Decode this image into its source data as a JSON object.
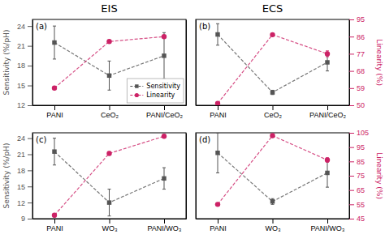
{
  "chart_data": [
    {
      "type": "line",
      "title": "EIS",
      "annotation": "(a)",
      "categories": [
        "PANI",
        "CeO₂",
        "PANI/CeO₂"
      ],
      "y_label": "Sensitivity (%/pH)",
      "ylim": [
        12,
        25
      ],
      "yticks": [
        12,
        15,
        18,
        21,
        24
      ],
      "y2lim": [
        65,
        100
      ],
      "legend": "lower right",
      "series": [
        {
          "name": "Sensitivity",
          "color": "#555555",
          "marker": "square",
          "line_style": "dashed",
          "values": [
            21.5,
            16.5,
            19.5
          ],
          "errors": [
            2.5,
            2.2,
            3.5
          ]
        },
        {
          "name": "Linearity",
          "axis": "y2",
          "color": "#cc2266",
          "marker": "circle",
          "line_style": "dashed",
          "values": [
            72,
            91,
            93
          ],
          "errors": [
            0.5,
            0.5,
            0.5
          ]
        }
      ]
    },
    {
      "type": "line",
      "title": "ECS",
      "annotation": "(b)",
      "categories": [
        "PANI",
        "CeO₂",
        "PANI/CeO₂"
      ],
      "y2_label": "Linearity (%)",
      "ylim": [
        0,
        20
      ],
      "y2lim": [
        50,
        95
      ],
      "y2ticks": [
        50,
        59,
        68,
        77,
        86,
        95
      ],
      "series": [
        {
          "color": "#555555",
          "marker": "square",
          "line_style": "dashed",
          "values": [
            16.5,
            3.0,
            10.0
          ],
          "errors": [
            2.5,
            0.5,
            2.0
          ]
        },
        {
          "axis": "y2",
          "color": "#cc2266",
          "marker": "circle",
          "line_style": "dashed",
          "values": [
            51,
            87,
            77
          ],
          "errors": [
            0.5,
            0.5,
            1.5
          ]
        }
      ]
    },
    {
      "type": "line",
      "annotation": "(c)",
      "categories": [
        "PANI",
        "WO₃",
        "PANI/WO₃"
      ],
      "y_label": "Sensitivity (%/pH)",
      "ylim": [
        9,
        25
      ],
      "yticks": [
        9,
        12,
        15,
        18,
        21,
        24
      ],
      "y2lim": [
        70,
        95
      ],
      "series": [
        {
          "color": "#555555",
          "marker": "square",
          "line_style": "dashed",
          "values": [
            21.5,
            12.0,
            16.5
          ],
          "errors": [
            2.5,
            2.5,
            2.0
          ]
        },
        {
          "axis": "y2",
          "color": "#cc2266",
          "marker": "circle",
          "line_style": "dashed",
          "values": [
            71,
            89,
            94
          ],
          "errors": [
            0.5,
            0.5,
            0.5
          ]
        }
      ]
    },
    {
      "type": "line",
      "annotation": "(d)",
      "categories": [
        "PANI",
        "WO₃",
        "PANI/WO₃"
      ],
      "y2_label": "Linearity (%)",
      "ylim": [
        5,
        20
      ],
      "y2lim": [
        45,
        105
      ],
      "y2ticks": [
        45,
        55,
        65,
        75,
        85,
        95,
        105
      ],
      "series": [
        {
          "color": "#555555",
          "marker": "square",
          "line_style": "dashed",
          "values": [
            16.5,
            8.0,
            13.0
          ],
          "errors": [
            3.5,
            0.5,
            2.5
          ]
        },
        {
          "axis": "y2",
          "color": "#cc2266",
          "marker": "circle",
          "line_style": "dashed",
          "values": [
            55,
            103,
            86
          ],
          "errors": [
            0.5,
            0.5,
            1.5
          ]
        }
      ]
    }
  ]
}
